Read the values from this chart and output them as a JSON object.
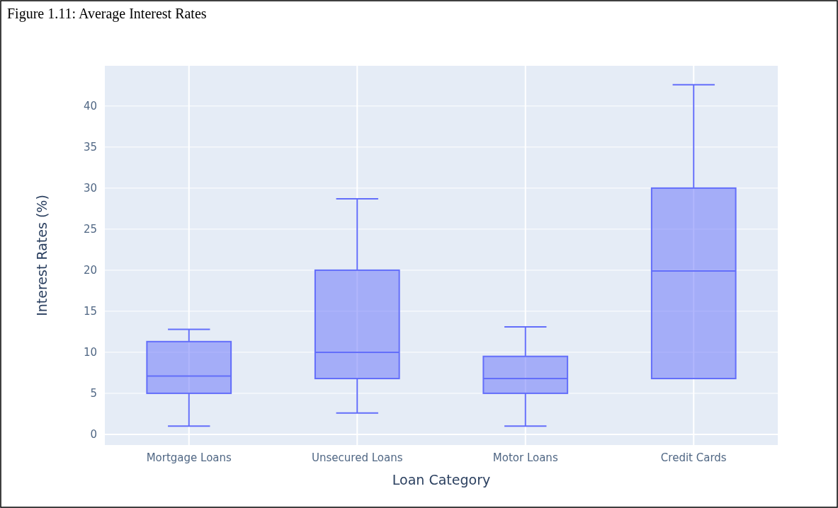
{
  "chart_data": {
    "type": "box",
    "title": "Figure 1.11: Average Interest Rates",
    "xlabel": "Loan Category",
    "ylabel": "Interest Rates (%)",
    "categories": [
      "Mortgage Loans",
      "Unsecured Loans",
      "Motor Loans",
      "Credit Cards"
    ],
    "boxes": [
      {
        "low": 1,
        "q1": 5,
        "median": 7.1,
        "q3": 11.3,
        "high": 12.8
      },
      {
        "low": 2.6,
        "q1": 6.8,
        "median": 10,
        "q3": 20,
        "high": 28.7
      },
      {
        "low": 1,
        "q1": 5,
        "median": 6.8,
        "q3": 9.5,
        "high": 13.1
      },
      {
        "low": 6.8,
        "q1": 6.8,
        "median": 19.9,
        "q3": 30,
        "high": 42.6
      }
    ],
    "color": "#636efa",
    "ylim": [
      -1.3,
      44.9
    ],
    "yticks": [
      0,
      5,
      10,
      15,
      20,
      25,
      30,
      35,
      40
    ],
    "grid": true
  }
}
